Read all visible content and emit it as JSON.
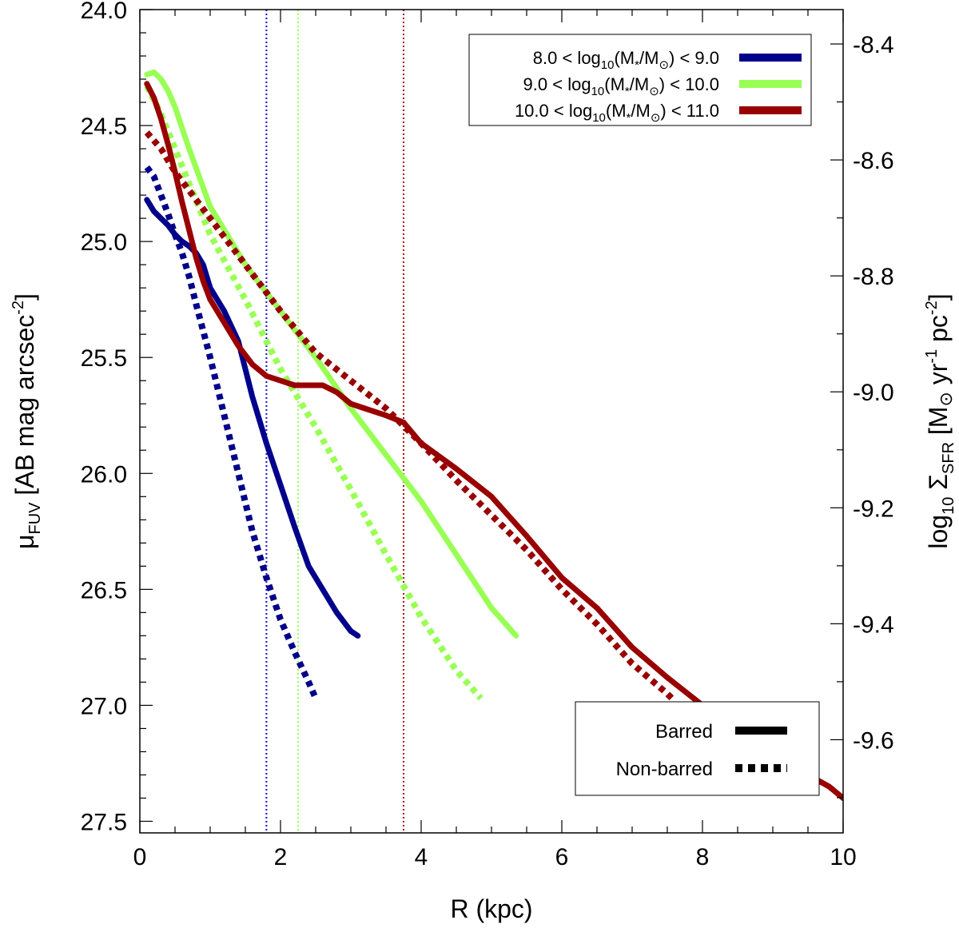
{
  "chart_data": {
    "type": "line",
    "xlabel": "R (kpc)",
    "ylabel": {
      "main": "μ",
      "sub": "FUV",
      "rest": " [AB mag arcsec",
      "sup": "-2",
      "close": "]"
    },
    "y2label": {
      "pre": "log",
      "sub1": "10",
      "sym": " Σ",
      "sub2": "SFR",
      "open": " [M",
      "sun": "⊙",
      "yr": " yr",
      "sup1": "-1",
      "pc": " pc",
      "sup2": "-2",
      "close": "]"
    },
    "xlim": [
      0,
      10
    ],
    "ylim": [
      24.0,
      27.55
    ],
    "y2lim": [
      -8.3407,
      -9.7607
    ],
    "xticks": [
      0,
      2,
      4,
      6,
      8,
      10
    ],
    "xtick_labels": [
      "0",
      "2",
      "4",
      "6",
      "8",
      "10"
    ],
    "yticks": [
      24.0,
      24.5,
      25.0,
      25.5,
      26.0,
      26.5,
      27.0,
      27.5
    ],
    "ytick_labels": [
      "24.0",
      "24.5",
      "25.0",
      "25.5",
      "26.0",
      "26.5",
      "27.0",
      "27.5"
    ],
    "y2ticks": [
      -8.4,
      -8.6,
      -8.8,
      -9.0,
      -9.2,
      -9.4,
      -9.6
    ],
    "y2tick_labels": [
      "-8.4",
      "-8.6",
      "-8.8",
      "-9.0",
      "-9.2",
      "-9.4",
      "-9.6"
    ],
    "vlines": [
      {
        "x": 1.8,
        "color": "#1010cc"
      },
      {
        "x": 2.25,
        "color": "#99ff55"
      },
      {
        "x": 3.75,
        "color": "#aa1111"
      }
    ],
    "series": [
      {
        "name": "8.0 < log10(M*/M⊙) < 9.0, Barred",
        "color": "#00008b",
        "style": "solid",
        "x": [
          0.1,
          0.2,
          0.3,
          0.4,
          0.5,
          0.6,
          0.7,
          0.8,
          0.9,
          1.0,
          1.2,
          1.4,
          1.6,
          1.8,
          2.0,
          2.2,
          2.4,
          2.6,
          2.8,
          3.0,
          3.1
        ],
        "y": [
          24.82,
          24.87,
          24.9,
          24.93,
          24.97,
          25.0,
          25.02,
          25.05,
          25.1,
          25.2,
          25.3,
          25.43,
          25.67,
          25.87,
          26.05,
          26.23,
          26.4,
          26.5,
          26.6,
          26.68,
          26.7
        ]
      },
      {
        "name": "8.0 < log10(M*/M⊙) < 9.0, Non-barred",
        "color": "#00008b",
        "style": "dotted",
        "x": [
          0.1,
          0.2,
          0.3,
          0.4,
          0.5,
          0.6,
          0.7,
          0.8,
          1.0,
          1.2,
          1.4,
          1.6,
          1.8,
          2.0,
          2.2,
          2.4,
          2.5
        ],
        "y": [
          24.68,
          24.72,
          24.8,
          24.88,
          24.97,
          25.05,
          25.15,
          25.27,
          25.5,
          25.75,
          26.0,
          26.25,
          26.45,
          26.63,
          26.77,
          26.9,
          26.97
        ]
      },
      {
        "name": "9.0 < log10(M*/M⊙) < 10.0, Barred",
        "color": "#99ff55",
        "style": "solid",
        "x": [
          0.1,
          0.2,
          0.3,
          0.4,
          0.5,
          0.7,
          1.0,
          1.5,
          2.0,
          2.5,
          3.0,
          3.5,
          4.0,
          4.5,
          5.0,
          5.35
        ],
        "y": [
          24.28,
          24.27,
          24.3,
          24.35,
          24.42,
          24.6,
          24.85,
          25.1,
          25.3,
          25.5,
          25.72,
          25.92,
          26.12,
          26.35,
          26.58,
          26.7
        ]
      },
      {
        "name": "9.0 < log10(M*/M⊙) < 10.0, Non-barred",
        "color": "#99ff55",
        "style": "dotted",
        "x": [
          0.1,
          0.3,
          0.5,
          0.7,
          1.0,
          1.5,
          2.0,
          2.5,
          3.0,
          3.5,
          4.0,
          4.5,
          4.85
        ],
        "y": [
          24.33,
          24.45,
          24.6,
          24.75,
          24.97,
          25.25,
          25.55,
          25.8,
          26.07,
          26.35,
          26.62,
          26.85,
          26.97
        ]
      },
      {
        "name": "10.0 < log10(M*/M⊙) < 11.0, Barred",
        "color": "#990000",
        "style": "solid",
        "x": [
          0.1,
          0.2,
          0.3,
          0.4,
          0.5,
          0.6,
          0.7,
          0.8,
          0.9,
          1.0,
          1.2,
          1.4,
          1.6,
          1.8,
          2.0,
          2.2,
          2.4,
          2.6,
          2.8,
          3.0,
          3.2,
          3.5,
          3.75,
          4.0,
          4.5,
          5.0,
          5.5,
          6.0,
          6.5,
          7.0,
          7.5,
          8.0,
          8.5,
          9.0,
          9.5,
          9.8,
          10.0
        ],
        "y": [
          24.32,
          24.38,
          24.47,
          24.58,
          24.7,
          24.83,
          24.95,
          25.07,
          25.17,
          25.25,
          25.35,
          25.45,
          25.53,
          25.58,
          25.6,
          25.62,
          25.62,
          25.62,
          25.65,
          25.7,
          25.72,
          25.75,
          25.78,
          25.87,
          25.98,
          26.1,
          26.27,
          26.45,
          26.58,
          26.75,
          26.88,
          27.0,
          27.1,
          27.2,
          27.3,
          27.35,
          27.4
        ]
      },
      {
        "name": "10.0 < log10(M*/M⊙) < 11.0, Non-barred",
        "color": "#990000",
        "style": "dotted",
        "x": [
          0.1,
          0.3,
          0.5,
          0.8,
          1.0,
          1.5,
          2.0,
          2.5,
          3.0,
          3.5,
          4.0,
          4.5,
          5.0,
          5.5,
          6.0,
          6.5,
          7.0,
          7.5,
          7.6
        ],
        "y": [
          24.53,
          24.6,
          24.7,
          24.82,
          24.9,
          25.1,
          25.3,
          25.48,
          25.6,
          25.72,
          25.87,
          26.03,
          26.18,
          26.33,
          26.5,
          26.65,
          26.82,
          26.95,
          26.98
        ]
      }
    ],
    "legend_mass": {
      "entries": [
        {
          "lo": "8.0",
          "hi": "9.0",
          "color": "#00008b"
        },
        {
          "lo": "9.0",
          "hi": "10.0",
          "color": "#99ff55"
        },
        {
          "lo": "10.0",
          "hi": "11.0",
          "color": "#990000"
        }
      ],
      "lt": " < ",
      "log": "log",
      "sub10": "10",
      "paren_open": "(M",
      "star": "*",
      "slash": "/M",
      "sun": "⊙",
      "paren_close": ")",
      "placement": "top-right"
    },
    "legend_style": {
      "entries": [
        {
          "label": "Barred",
          "style": "solid"
        },
        {
          "label": "Non-barred",
          "style": "dotted"
        }
      ],
      "placement": "bottom-right"
    }
  }
}
